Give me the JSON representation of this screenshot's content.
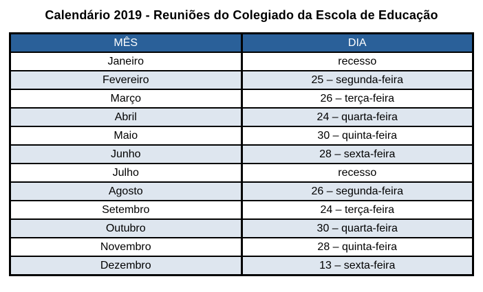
{
  "title": "Calendário 2019 - Reuniões do Colegiado da Escola de Educação",
  "table": {
    "headers": {
      "month": "MÊS",
      "day": "DIA"
    },
    "rows": [
      {
        "month": "Janeiro",
        "day": "recesso"
      },
      {
        "month": "Fevereiro",
        "day": "25 – segunda-feira"
      },
      {
        "month": "Março",
        "day": "26 – terça-feira"
      },
      {
        "month": "Abril",
        "day": "24 – quarta-feira"
      },
      {
        "month": "Maio",
        "day": "30 – quinta-feira"
      },
      {
        "month": "Junho",
        "day": "28 – sexta-feira"
      },
      {
        "month": "Julho",
        "day": "recesso"
      },
      {
        "month": "Agosto",
        "day": "26 – segunda-feira"
      },
      {
        "month": "Setembro",
        "day": "24 – terça-feira"
      },
      {
        "month": "Outubro",
        "day": "30 – quarta-feira"
      },
      {
        "month": "Novembro",
        "day": "28 – quinta-feira"
      },
      {
        "month": "Dezembro",
        "day": "13 – sexta-feira"
      }
    ],
    "colors": {
      "header_bg": "#2A6099",
      "header_text": "#FFFFFF",
      "alt_row_bg": "#DEE6EF",
      "row_bg": "#FFFFFF",
      "border": "#000000"
    }
  }
}
